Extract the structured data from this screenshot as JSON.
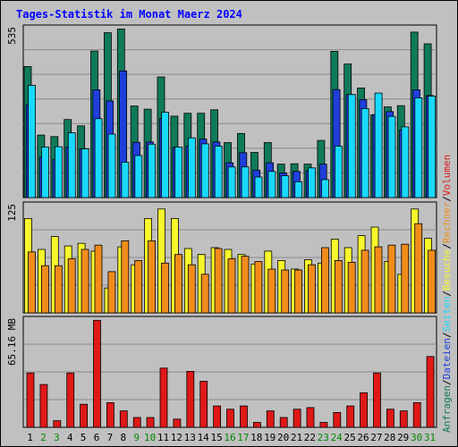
{
  "title": "Tages-Statistik im Monat Maerz 2024",
  "colors": {
    "background": "#c0c0c0",
    "anfragen": "#0f7a5a",
    "dateien": "#1f3fdc",
    "seiten": "#19d9ff",
    "besuche": "#f7f72c",
    "rechner": "#f08c1c",
    "volumen": "#e01818",
    "title": "#0000ff",
    "weekend": "#008800"
  },
  "chart_data": [
    {
      "type": "bar",
      "panel": "top",
      "ylabel_max": "535",
      "ylim": [
        0,
        535
      ],
      "categories": [
        "1",
        "2",
        "3",
        "4",
        "5",
        "6",
        "7",
        "8",
        "9",
        "10",
        "11",
        "12",
        "13",
        "14",
        "15",
        "16",
        "17",
        "18",
        "19",
        "20",
        "21",
        "22",
        "23",
        "24",
        "25",
        "26",
        "27",
        "28",
        "29",
        "30",
        "31"
      ],
      "weekend_days": [
        "2",
        "3",
        "9",
        "10",
        "16",
        "17",
        "23",
        "24",
        "30",
        "31"
      ],
      "series": [
        {
          "name": "Anfragen",
          "values": [
            415,
            198,
            193,
            247,
            227,
            464,
            522,
            534,
            290,
            280,
            382,
            258,
            267,
            267,
            278,
            174,
            203,
            143,
            174,
            106,
            107,
            106,
            181,
            463,
            423,
            347,
            262,
            287,
            291,
            524,
            487
          ]
        },
        {
          "name": "Dateien",
          "values": [
            294,
            128,
            121,
            160,
            154,
            341,
            306,
            401,
            175,
            176,
            250,
            159,
            163,
            185,
            176,
            110,
            142,
            87,
            110,
            78,
            83,
            85,
            106,
            342,
            326,
            310,
            263,
            272,
            214,
            341,
            323
          ]
        },
        {
          "name": "Seiten",
          "values": [
            355,
            160,
            161,
            205,
            154,
            250,
            201,
            112,
            133,
            169,
            270,
            160,
            189,
            170,
            163,
            97,
            97,
            65,
            83,
            69,
            50,
            94,
            57,
            163,
            326,
            282,
            331,
            257,
            224,
            316,
            321
          ]
        }
      ]
    },
    {
      "type": "bar",
      "panel": "middle",
      "ylabel_max": "125",
      "ylim": [
        0,
        125
      ],
      "categories": [
        "1",
        "2",
        "3",
        "4",
        "5",
        "6",
        "7",
        "8",
        "9",
        "10",
        "11",
        "12",
        "13",
        "14",
        "15",
        "16",
        "17",
        "18",
        "19",
        "20",
        "21",
        "22",
        "23",
        "24",
        "25",
        "26",
        "27",
        "28",
        "29",
        "30",
        "31"
      ],
      "series": [
        {
          "name": "Besuche",
          "values": [
            110,
            74,
            89,
            78,
            81,
            72,
            29,
            77,
            56,
            110,
            121,
            110,
            75,
            68,
            76,
            74,
            68,
            57,
            72,
            61,
            51,
            62,
            58,
            86,
            76,
            90,
            100,
            60,
            45,
            121,
            87
          ]
        },
        {
          "name": "Rechner",
          "values": [
            71,
            55,
            55,
            63,
            74,
            79,
            48,
            84,
            61,
            84,
            58,
            68,
            56,
            45,
            75,
            63,
            66,
            60,
            51,
            50,
            50,
            56,
            76,
            61,
            59,
            73,
            77,
            79,
            80,
            104,
            73
          ]
        }
      ]
    },
    {
      "type": "bar",
      "panel": "bottom",
      "ylabel_max": "65.16 MB",
      "ylim": [
        0,
        65.16
      ],
      "categories": [
        "1",
        "2",
        "3",
        "4",
        "5",
        "6",
        "7",
        "8",
        "9",
        "10",
        "11",
        "12",
        "13",
        "14",
        "15",
        "16",
        "17",
        "18",
        "19",
        "20",
        "21",
        "22",
        "23",
        "24",
        "25",
        "26",
        "27",
        "28",
        "29",
        "30",
        "31"
      ],
      "series": [
        {
          "name": "Volumen",
          "values": [
            33,
            26,
            4,
            33,
            14,
            65,
            15,
            10,
            6,
            6,
            36,
            5,
            34,
            28,
            13,
            11,
            13,
            3,
            10,
            6,
            11,
            12,
            3,
            9,
            13,
            21,
            33,
            11,
            10,
            15,
            43
          ]
        }
      ]
    }
  ],
  "right_legend": [
    {
      "text": "Anfragen",
      "color": "#0f7a5a"
    },
    {
      "text": "/",
      "color": "#000000"
    },
    {
      "text": "Dateien",
      "color": "#1f3fdc"
    },
    {
      "text": "/",
      "color": "#000000"
    },
    {
      "text": "Seiten",
      "color": "#19d9ff"
    },
    {
      "text": "/",
      "color": "#000000"
    },
    {
      "text": "Besuche",
      "color": "#f7f72c"
    },
    {
      "text": "/",
      "color": "#000000"
    },
    {
      "text": "Rechner",
      "color": "#f08c1c"
    },
    {
      "text": "/",
      "color": "#000000"
    },
    {
      "text": "Volumen",
      "color": "#e01818"
    }
  ]
}
